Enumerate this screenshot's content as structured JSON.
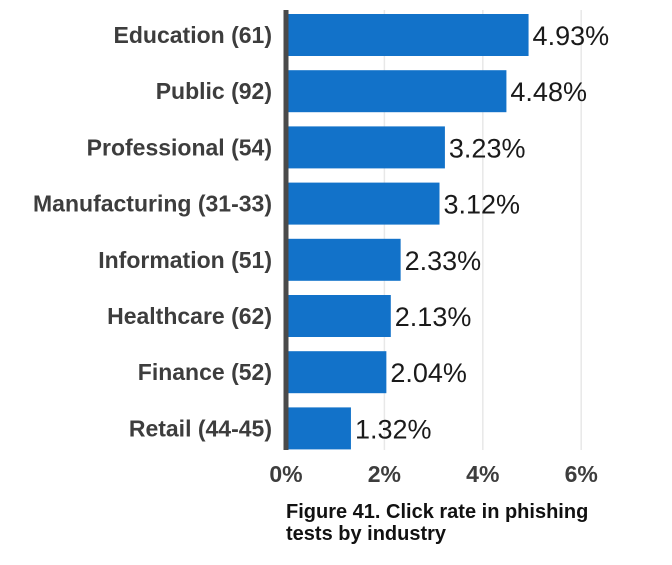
{
  "caption": "Figure 41. Click rate in phishing tests by industry",
  "colors": {
    "bar": "#1272c9",
    "axis": "#4a4a4a",
    "grid": "#e8e8e8"
  },
  "chart_data": {
    "type": "bar",
    "orientation": "horizontal",
    "title": "Figure 41. Click rate in phishing tests by industry",
    "xlabel": "",
    "ylabel": "",
    "categories": [
      "Education (61)",
      "Public (92)",
      "Professional (54)",
      "Manufacturing (31-33)",
      "Information (51)",
      "Healthcare (62)",
      "Finance (52)",
      "Retail (44-45)"
    ],
    "values": [
      4.93,
      4.48,
      3.23,
      3.12,
      2.33,
      2.13,
      2.04,
      1.32
    ],
    "value_labels": [
      "4.93%",
      "4.48%",
      "3.23%",
      "3.12%",
      "2.33%",
      "2.13%",
      "2.04%",
      "1.32%"
    ],
    "xlim": [
      0,
      6
    ],
    "x_ticks": [
      0,
      2,
      4,
      6
    ],
    "x_tick_labels": [
      "0%",
      "2%",
      "4%",
      "6%"
    ],
    "grid": "vertical",
    "legend": "none"
  }
}
